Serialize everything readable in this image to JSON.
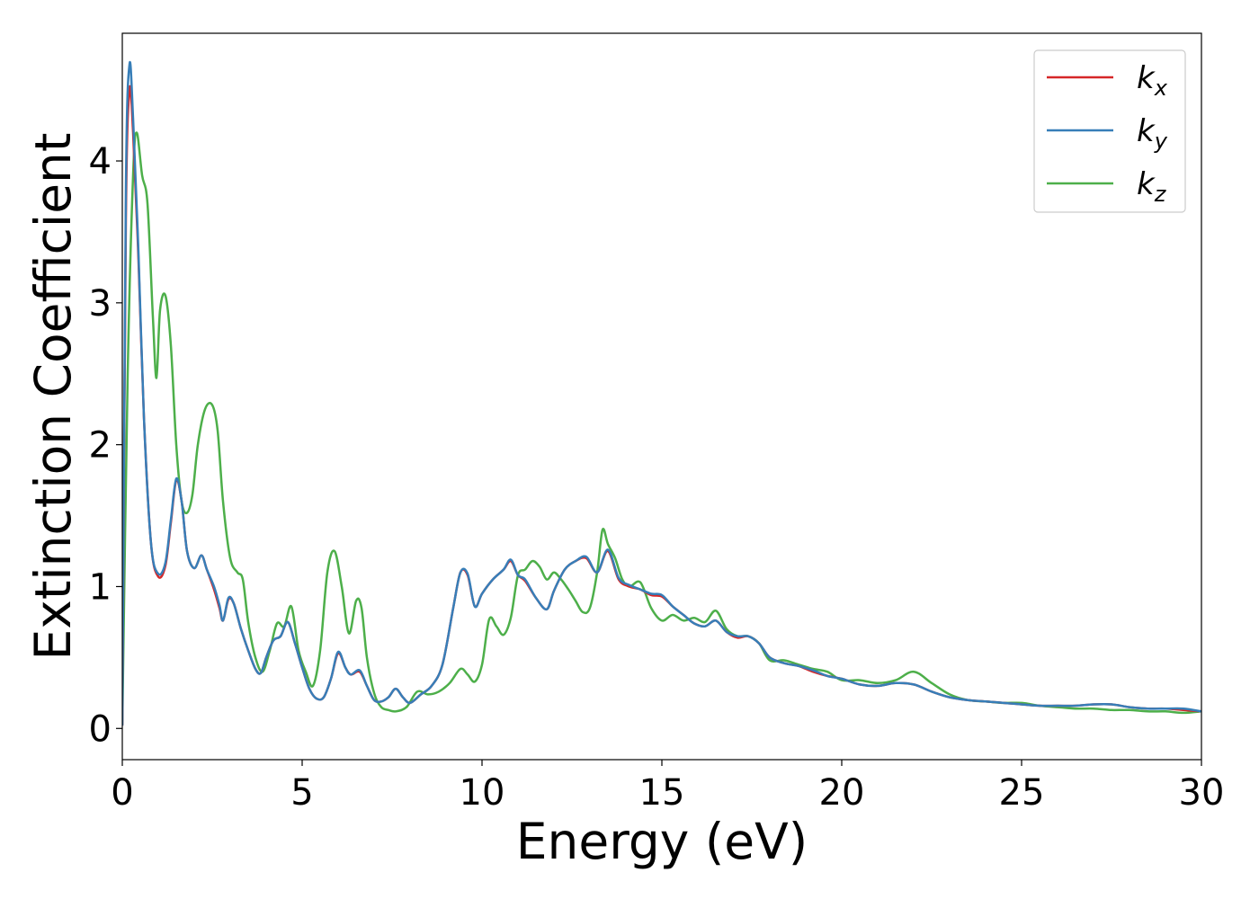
{
  "chart_data": {
    "type": "line",
    "title": "",
    "xlabel": "Energy (eV)",
    "ylabel": "Extinction Coefficient",
    "xlim": [
      0,
      30
    ],
    "ylim": [
      -0.22,
      4.9
    ],
    "xticks": [
      "0",
      "5",
      "10",
      "15",
      "20",
      "25",
      "30"
    ],
    "yticks": [
      "0",
      "1",
      "2",
      "3",
      "4"
    ],
    "grid": false,
    "legend_position": "top-right",
    "series": [
      {
        "name": "k",
        "subscript": "x",
        "color": "#d62728",
        "x": [
          0,
          0.1,
          0.2,
          0.3,
          0.45,
          0.6,
          0.8,
          1.0,
          1.2,
          1.35,
          1.5,
          1.65,
          1.8,
          2.0,
          2.2,
          2.35,
          2.55,
          2.7,
          2.8,
          2.95,
          3.1,
          3.3,
          3.5,
          3.7,
          3.85,
          4.0,
          4.2,
          4.4,
          4.6,
          4.8,
          5.0,
          5.2,
          5.4,
          5.6,
          5.8,
          6.0,
          6.2,
          6.35,
          6.6,
          6.8,
          7.0,
          7.2,
          7.4,
          7.6,
          7.8,
          8.0,
          8.3,
          8.6,
          8.9,
          9.2,
          9.4,
          9.6,
          9.8,
          10.0,
          10.3,
          10.6,
          10.8,
          11.0,
          11.2,
          11.5,
          11.8,
          12.0,
          12.3,
          12.6,
          12.9,
          13.2,
          13.5,
          13.8,
          14.1,
          14.4,
          14.7,
          15.0,
          15.3,
          15.6,
          15.9,
          16.2,
          16.5,
          16.8,
          17.1,
          17.4,
          17.7,
          18.0,
          18.4,
          18.8,
          19.2,
          19.6,
          20.0,
          20.5,
          21.0,
          21.5,
          22.0,
          22.5,
          23.0,
          23.5,
          24.0,
          24.5,
          25.0,
          25.5,
          26.0,
          26.5,
          27.0,
          27.5,
          28.0,
          28.5,
          29.0,
          29.5,
          30.0
        ],
        "y": [
          0.02,
          3.6,
          4.5,
          4.2,
          3.3,
          2.2,
          1.3,
          1.07,
          1.15,
          1.45,
          1.75,
          1.6,
          1.25,
          1.13,
          1.22,
          1.12,
          0.98,
          0.85,
          0.76,
          0.91,
          0.88,
          0.7,
          0.55,
          0.42,
          0.39,
          0.5,
          0.62,
          0.65,
          0.75,
          0.6,
          0.43,
          0.28,
          0.21,
          0.22,
          0.35,
          0.53,
          0.43,
          0.38,
          0.4,
          0.3,
          0.2,
          0.19,
          0.22,
          0.28,
          0.22,
          0.18,
          0.24,
          0.3,
          0.45,
          0.85,
          1.1,
          1.08,
          0.86,
          0.95,
          1.05,
          1.12,
          1.18,
          1.08,
          1.04,
          0.92,
          0.84,
          0.97,
          1.12,
          1.18,
          1.2,
          1.1,
          1.25,
          1.05,
          1.0,
          0.98,
          0.94,
          0.93,
          0.86,
          0.8,
          0.74,
          0.72,
          0.76,
          0.68,
          0.64,
          0.65,
          0.6,
          0.5,
          0.46,
          0.44,
          0.4,
          0.37,
          0.35,
          0.31,
          0.3,
          0.32,
          0.31,
          0.26,
          0.22,
          0.2,
          0.19,
          0.18,
          0.17,
          0.16,
          0.16,
          0.16,
          0.17,
          0.17,
          0.15,
          0.14,
          0.14,
          0.13,
          0.12
        ]
      },
      {
        "name": "k",
        "subscript": "y",
        "color": "#377eb8",
        "x": [
          0,
          0.1,
          0.2,
          0.3,
          0.45,
          0.6,
          0.8,
          1.0,
          1.2,
          1.35,
          1.5,
          1.65,
          1.8,
          2.0,
          2.2,
          2.35,
          2.55,
          2.7,
          2.8,
          2.95,
          3.1,
          3.3,
          3.5,
          3.7,
          3.85,
          4.0,
          4.2,
          4.4,
          4.6,
          4.8,
          5.0,
          5.2,
          5.4,
          5.6,
          5.8,
          6.0,
          6.2,
          6.35,
          6.6,
          6.8,
          7.0,
          7.2,
          7.4,
          7.6,
          7.8,
          8.0,
          8.3,
          8.6,
          8.9,
          9.2,
          9.4,
          9.6,
          9.8,
          10.0,
          10.3,
          10.6,
          10.8,
          11.0,
          11.2,
          11.5,
          11.8,
          12.0,
          12.3,
          12.6,
          12.9,
          13.2,
          13.5,
          13.8,
          14.1,
          14.4,
          14.7,
          15.0,
          15.3,
          15.6,
          15.9,
          16.2,
          16.5,
          16.8,
          17.1,
          17.4,
          17.7,
          18.0,
          18.4,
          18.8,
          19.2,
          19.6,
          20.0,
          20.5,
          21.0,
          21.5,
          22.0,
          22.5,
          23.0,
          23.5,
          24.0,
          24.5,
          25.0,
          25.5,
          26.0,
          26.5,
          27.0,
          27.5,
          28.0,
          28.5,
          29.0,
          29.5,
          30.0
        ],
        "y": [
          0.02,
          3.8,
          4.68,
          4.3,
          3.35,
          2.2,
          1.3,
          1.09,
          1.17,
          1.47,
          1.76,
          1.6,
          1.25,
          1.13,
          1.22,
          1.12,
          1.0,
          0.87,
          0.76,
          0.92,
          0.88,
          0.7,
          0.55,
          0.42,
          0.39,
          0.5,
          0.62,
          0.65,
          0.75,
          0.6,
          0.43,
          0.28,
          0.21,
          0.22,
          0.35,
          0.54,
          0.43,
          0.38,
          0.41,
          0.3,
          0.2,
          0.19,
          0.22,
          0.28,
          0.22,
          0.18,
          0.24,
          0.3,
          0.45,
          0.85,
          1.1,
          1.09,
          0.86,
          0.95,
          1.05,
          1.12,
          1.19,
          1.08,
          1.05,
          0.92,
          0.84,
          0.97,
          1.12,
          1.18,
          1.21,
          1.1,
          1.26,
          1.06,
          1.01,
          0.98,
          0.95,
          0.94,
          0.86,
          0.8,
          0.74,
          0.72,
          0.76,
          0.68,
          0.65,
          0.65,
          0.6,
          0.5,
          0.46,
          0.44,
          0.41,
          0.37,
          0.35,
          0.31,
          0.3,
          0.32,
          0.31,
          0.26,
          0.22,
          0.2,
          0.19,
          0.18,
          0.17,
          0.16,
          0.16,
          0.16,
          0.17,
          0.17,
          0.15,
          0.14,
          0.14,
          0.14,
          0.12
        ]
      },
      {
        "name": "k",
        "subscript": "z",
        "color": "#4daf4a",
        "x": [
          0,
          0.15,
          0.3,
          0.4,
          0.55,
          0.7,
          0.85,
          0.95,
          1.05,
          1.2,
          1.35,
          1.5,
          1.65,
          1.8,
          1.95,
          2.1,
          2.3,
          2.5,
          2.65,
          2.8,
          3.0,
          3.2,
          3.35,
          3.5,
          3.7,
          3.9,
          4.1,
          4.3,
          4.5,
          4.7,
          4.9,
          5.1,
          5.3,
          5.5,
          5.7,
          5.9,
          6.1,
          6.3,
          6.5,
          6.65,
          6.8,
          7.0,
          7.2,
          7.4,
          7.6,
          7.9,
          8.2,
          8.5,
          8.8,
          9.1,
          9.4,
          9.6,
          9.8,
          10.0,
          10.2,
          10.4,
          10.6,
          10.8,
          11.0,
          11.2,
          11.4,
          11.6,
          11.8,
          12.0,
          12.2,
          12.4,
          12.6,
          12.8,
          13.0,
          13.2,
          13.35,
          13.5,
          13.7,
          13.9,
          14.1,
          14.4,
          14.7,
          15.0,
          15.3,
          15.6,
          15.9,
          16.2,
          16.5,
          16.8,
          17.1,
          17.4,
          17.7,
          18.0,
          18.4,
          18.8,
          19.2,
          19.6,
          20.0,
          20.5,
          21.0,
          21.5,
          22.0,
          22.5,
          23.0,
          23.5,
          24.0,
          24.5,
          25.0,
          25.5,
          26.0,
          26.5,
          27.0,
          27.5,
          28.0,
          28.5,
          29.0,
          29.5,
          30.0
        ],
        "y": [
          0.03,
          2.5,
          3.9,
          4.2,
          3.9,
          3.7,
          2.9,
          2.47,
          2.95,
          3.05,
          2.7,
          2.0,
          1.6,
          1.52,
          1.65,
          2.0,
          2.25,
          2.28,
          2.1,
          1.6,
          1.2,
          1.1,
          1.05,
          0.75,
          0.5,
          0.4,
          0.55,
          0.74,
          0.72,
          0.86,
          0.55,
          0.4,
          0.3,
          0.55,
          1.1,
          1.25,
          1.0,
          0.67,
          0.9,
          0.85,
          0.5,
          0.25,
          0.15,
          0.13,
          0.12,
          0.15,
          0.26,
          0.24,
          0.26,
          0.32,
          0.42,
          0.38,
          0.33,
          0.45,
          0.77,
          0.72,
          0.66,
          0.78,
          1.08,
          1.12,
          1.18,
          1.14,
          1.05,
          1.1,
          1.05,
          0.98,
          0.9,
          0.82,
          0.85,
          1.1,
          1.4,
          1.3,
          1.2,
          1.05,
          1.0,
          1.03,
          0.85,
          0.76,
          0.8,
          0.76,
          0.78,
          0.75,
          0.83,
          0.7,
          0.65,
          0.65,
          0.6,
          0.48,
          0.48,
          0.45,
          0.42,
          0.4,
          0.34,
          0.34,
          0.32,
          0.34,
          0.4,
          0.32,
          0.24,
          0.2,
          0.19,
          0.18,
          0.18,
          0.16,
          0.15,
          0.14,
          0.14,
          0.13,
          0.13,
          0.12,
          0.12,
          0.11,
          0.12
        ]
      }
    ]
  }
}
